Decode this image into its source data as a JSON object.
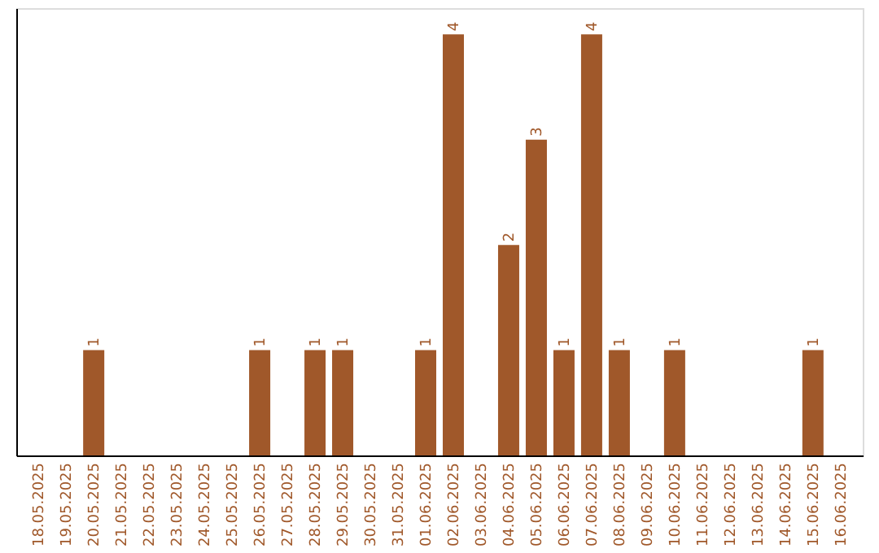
{
  "chart_data": {
    "type": "bar",
    "categories": [
      "18.05.2025",
      "19.05.2025",
      "20.05.2025",
      "21.05.2025",
      "22.05.2025",
      "23.05.2025",
      "24.05.2025",
      "25.05.2025",
      "26.05.2025",
      "27.05.2025",
      "28.05.2025",
      "29.05.2025",
      "30.05.2025",
      "31.05.2025",
      "01.06.2025",
      "02.06.2025",
      "03.06.2025",
      "04.06.2025",
      "05.06.2025",
      "06.06.2025",
      "07.06.2025",
      "08.06.2025",
      "09.06.2025",
      "10.06.2025",
      "11.06.2025",
      "12.06.2025",
      "13.06.2025",
      "14.06.2025",
      "15.06.2025",
      "16.06.2025"
    ],
    "values": [
      0,
      0,
      1,
      0,
      0,
      0,
      0,
      0,
      1,
      0,
      1,
      1,
      0,
      0,
      1,
      4,
      0,
      2,
      3,
      1,
      4,
      1,
      0,
      1,
      0,
      0,
      0,
      0,
      1,
      0
    ],
    "value_labels": [
      null,
      null,
      "1",
      null,
      null,
      null,
      null,
      null,
      "1",
      null,
      "1",
      "1",
      null,
      null,
      "1",
      "4",
      null,
      "2",
      "3",
      "1",
      "4",
      "1",
      null,
      "1",
      null,
      null,
      null,
      null,
      "1",
      null
    ],
    "color": "#a0582a",
    "ylim": [
      0,
      4.25
    ],
    "tick_labels": "x",
    "grid": false
  }
}
